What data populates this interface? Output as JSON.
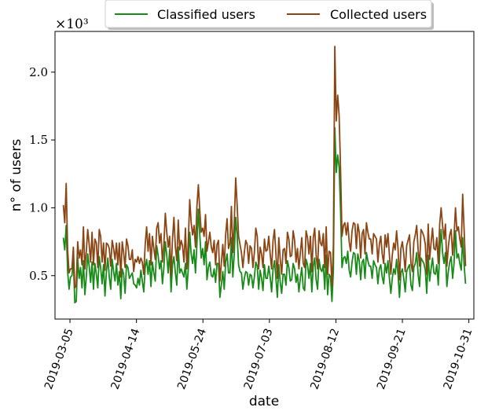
{
  "chart_data": {
    "type": "line",
    "xlabel": "date",
    "ylabel": "n° of users",
    "y_multiplier": "×10³",
    "y_scale_note": "values in thousands of users",
    "ylim": [
      0.18,
      2.3
    ],
    "xlim": [
      "2019-02-24",
      "2019-11-03"
    ],
    "yticks": [
      0.5,
      1.0,
      1.5,
      2.0
    ],
    "ytick_labels": [
      "0.5",
      "1.0",
      "1.5",
      "2.0"
    ],
    "xticks": [
      "2019-03-05",
      "2019-04-14",
      "2019-05-24",
      "2019-07-03",
      "2019-08-12",
      "2019-09-21",
      "2019-10-31"
    ],
    "legend": "top-center",
    "grid": false,
    "colors": {
      "classified": "#178a17",
      "collected": "#8b4513"
    },
    "x_start": "2019-03-01",
    "x_end": "2019-10-29",
    "series": [
      {
        "name": "Classified users",
        "values": [
          0.78,
          0.69,
          0.87,
          0.53,
          0.4,
          0.49,
          0.5,
          0.61,
          0.3,
          0.31,
          0.63,
          0.48,
          0.56,
          0.41,
          0.61,
          0.36,
          0.49,
          0.66,
          0.57,
          0.45,
          0.6,
          0.4,
          0.59,
          0.51,
          0.41,
          0.64,
          0.56,
          0.44,
          0.58,
          0.35,
          0.53,
          0.63,
          0.49,
          0.4,
          0.62,
          0.53,
          0.46,
          0.59,
          0.43,
          0.53,
          0.33,
          0.55,
          0.51,
          0.37,
          0.58,
          0.56,
          0.48,
          0.5,
          0.52,
          0.44,
          0.43,
          0.41,
          0.48,
          0.43,
          0.54,
          0.46,
          0.38,
          0.56,
          0.62,
          0.51,
          0.61,
          0.42,
          0.6,
          0.52,
          0.46,
          0.72,
          0.65,
          0.55,
          0.61,
          0.44,
          0.56,
          0.75,
          0.65,
          0.52,
          0.69,
          0.38,
          0.58,
          0.64,
          0.52,
          0.43,
          0.71,
          0.52,
          0.55,
          0.52,
          0.49,
          0.59,
          0.4,
          0.55,
          0.82,
          0.66,
          0.59,
          0.69,
          0.52,
          0.73,
          0.99,
          0.8,
          0.63,
          0.7,
          0.58,
          0.75,
          0.47,
          0.56,
          0.6,
          0.5,
          0.49,
          0.55,
          0.45,
          0.59,
          0.59,
          0.34,
          0.43,
          0.53,
          0.4,
          0.6,
          0.66,
          0.52,
          0.52,
          0.78,
          0.49,
          0.66,
          0.93,
          0.8,
          0.58,
          0.53,
          0.52,
          0.4,
          0.48,
          0.53,
          0.52,
          0.43,
          0.51,
          0.5,
          0.41,
          0.49,
          0.6,
          0.57,
          0.4,
          0.54,
          0.48,
          0.39,
          0.58,
          0.48,
          0.48,
          0.57,
          0.49,
          0.38,
          0.55,
          0.61,
          0.48,
          0.34,
          0.58,
          0.45,
          0.37,
          0.51,
          0.51,
          0.43,
          0.61,
          0.56,
          0.46,
          0.47,
          0.59,
          0.55,
          0.45,
          0.51,
          0.38,
          0.48,
          0.56,
          0.41,
          0.39,
          0.62,
          0.58,
          0.48,
          0.59,
          0.38,
          0.57,
          0.63,
          0.47,
          0.4,
          0.62,
          0.55,
          0.53,
          0.58,
          0.4,
          0.65,
          0.36,
          0.51,
          0.49,
          0.31,
          0.54,
          1.59,
          1.26,
          1.39,
          1.3,
          0.98,
          0.56,
          0.63,
          0.64,
          0.59,
          0.68,
          0.54,
          0.49,
          0.6,
          0.67,
          0.66,
          0.51,
          0.66,
          0.61,
          0.47,
          0.6,
          0.62,
          0.48,
          0.67,
          0.61,
          0.57,
          0.57,
          0.48,
          0.61,
          0.58,
          0.56,
          0.44,
          0.55,
          0.58,
          0.49,
          0.44,
          0.59,
          0.52,
          0.61,
          0.48,
          0.37,
          0.48,
          0.55,
          0.51,
          0.62,
          0.51,
          0.34,
          0.52,
          0.55,
          0.48,
          0.38,
          0.53,
          0.56,
          0.58,
          0.43,
          0.39,
          0.56,
          0.59,
          0.67,
          0.51,
          0.42,
          0.63,
          0.61,
          0.59,
          0.54,
          0.37,
          0.65,
          0.46,
          0.55,
          0.63,
          0.52,
          0.51,
          0.58,
          0.43,
          0.67,
          0.84,
          0.67,
          0.59,
          0.67,
          0.42,
          0.53,
          0.6,
          0.64,
          0.48,
          0.59,
          0.83,
          0.63,
          0.66,
          0.59,
          0.54,
          0.78,
          0.58,
          0.44
        ]
      },
      {
        "name": "Collected users",
        "values": [
          1.02,
          0.89,
          1.18,
          0.69,
          0.52,
          0.55,
          0.55,
          0.71,
          0.41,
          0.43,
          0.75,
          0.63,
          0.69,
          0.58,
          0.86,
          0.55,
          0.68,
          0.84,
          0.73,
          0.6,
          0.82,
          0.58,
          0.77,
          0.74,
          0.56,
          0.84,
          0.79,
          0.6,
          0.74,
          0.54,
          0.74,
          0.73,
          0.7,
          0.57,
          0.76,
          0.7,
          0.62,
          0.74,
          0.58,
          0.74,
          0.49,
          0.75,
          0.67,
          0.56,
          0.77,
          0.72,
          0.62,
          0.62,
          0.69,
          0.53,
          0.62,
          0.6,
          0.64,
          0.59,
          0.63,
          0.6,
          0.51,
          0.73,
          0.86,
          0.68,
          0.81,
          0.58,
          0.79,
          0.7,
          0.62,
          0.85,
          0.89,
          0.74,
          0.81,
          0.6,
          0.73,
          0.96,
          0.82,
          0.71,
          0.79,
          0.5,
          0.77,
          0.93,
          0.71,
          0.61,
          0.91,
          0.69,
          0.76,
          0.72,
          0.6,
          0.85,
          0.55,
          0.75,
          1.06,
          0.89,
          0.8,
          0.87,
          0.71,
          1.01,
          1.17,
          0.98,
          0.82,
          0.85,
          0.79,
          0.95,
          0.68,
          0.75,
          0.82,
          0.71,
          0.67,
          0.76,
          0.58,
          0.73,
          0.76,
          0.46,
          0.59,
          0.73,
          0.57,
          0.8,
          0.92,
          0.7,
          0.74,
          1.01,
          0.67,
          0.89,
          1.22,
          1.02,
          0.79,
          0.73,
          0.67,
          0.56,
          0.67,
          0.76,
          0.73,
          0.59,
          0.72,
          0.7,
          0.56,
          0.67,
          0.85,
          0.79,
          0.55,
          0.71,
          0.66,
          0.56,
          0.77,
          0.68,
          0.69,
          0.79,
          0.66,
          0.55,
          0.76,
          0.84,
          0.66,
          0.48,
          0.78,
          0.62,
          0.51,
          0.69,
          0.7,
          0.59,
          0.82,
          0.77,
          0.64,
          0.65,
          0.83,
          0.76,
          0.6,
          0.7,
          0.55,
          0.67,
          0.78,
          0.59,
          0.56,
          0.83,
          0.78,
          0.66,
          0.79,
          0.53,
          0.78,
          0.85,
          0.65,
          0.55,
          0.83,
          0.74,
          0.72,
          0.81,
          0.56,
          0.86,
          0.51,
          0.68,
          0.67,
          0.42,
          0.72,
          2.19,
          1.64,
          1.83,
          1.68,
          1.28,
          0.79,
          0.87,
          0.89,
          0.8,
          0.89,
          0.75,
          0.68,
          0.83,
          0.89,
          0.88,
          0.7,
          0.88,
          0.82,
          0.63,
          0.81,
          0.84,
          0.66,
          0.89,
          0.82,
          0.77,
          0.77,
          0.66,
          0.81,
          0.79,
          0.77,
          0.6,
          0.73,
          0.79,
          0.66,
          0.59,
          0.8,
          0.71,
          0.81,
          0.65,
          0.51,
          0.65,
          0.74,
          0.69,
          0.83,
          0.7,
          0.47,
          0.7,
          0.75,
          0.66,
          0.53,
          0.72,
          0.76,
          0.8,
          0.59,
          0.53,
          0.75,
          0.8,
          0.87,
          0.69,
          0.57,
          0.84,
          0.82,
          0.79,
          0.73,
          0.51,
          0.88,
          0.62,
          0.74,
          0.85,
          0.7,
          0.69,
          0.78,
          0.59,
          0.88,
          1.0,
          0.87,
          0.77,
          0.88,
          0.57,
          0.71,
          0.8,
          0.84,
          0.65,
          0.79,
          1.0,
          0.83,
          0.86,
          0.77,
          0.71,
          1.1,
          0.84,
          0.57
        ]
      }
    ]
  }
}
